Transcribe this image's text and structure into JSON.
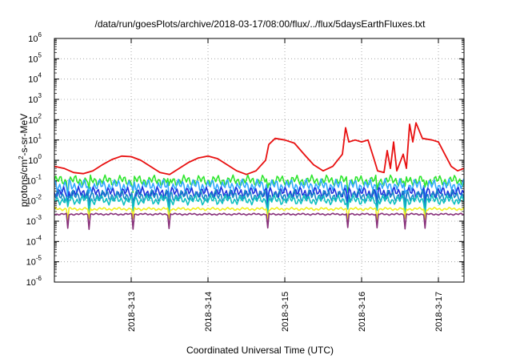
{
  "chart_data": {
    "type": "line",
    "title": "/data/run/goesPlots/archive/2018-03-17/08:00/flux/../flux/5daysEarthFluxes.txt",
    "xlabel": "Coordinated Universal Time (UTC)",
    "ylabel_parts": [
      "protons/cm",
      "2",
      "-s-sr-MeV"
    ],
    "y_scale": "log",
    "ylim": [
      1e-06,
      1000000.0
    ],
    "y_ticks": [
      {
        "base": "10",
        "exp": "-6",
        "value": 1e-06
      },
      {
        "base": "10",
        "exp": "-5",
        "value": 1e-05
      },
      {
        "base": "10",
        "exp": "-4",
        "value": 0.0001
      },
      {
        "base": "10",
        "exp": "-3",
        "value": 0.001
      },
      {
        "base": "10",
        "exp": "-2",
        "value": 0.01
      },
      {
        "base": "10",
        "exp": "-1",
        "value": 0.1
      },
      {
        "base": "10",
        "exp": "0",
        "value": 1
      },
      {
        "base": "10",
        "exp": "1",
        "value": 10
      },
      {
        "base": "10",
        "exp": "2",
        "value": 100
      },
      {
        "base": "10",
        "exp": "3",
        "value": 1000
      },
      {
        "base": "10",
        "exp": "4",
        "value": 10000
      },
      {
        "base": "10",
        "exp": "5",
        "value": 100000
      },
      {
        "base": "10",
        "exp": "6",
        "value": 1000000
      }
    ],
    "xlim": [
      "2018-03-12T00:00",
      "2018-03-17T08:00"
    ],
    "x_ticks": [
      {
        "label": "2018-3-13",
        "value": "2018-03-13T00:00"
      },
      {
        "label": "2018-3-14",
        "value": "2018-03-14T00:00"
      },
      {
        "label": "2018-3-15",
        "value": "2018-03-15T00:00"
      },
      {
        "label": "2018-3-16",
        "value": "2018-03-16T00:00"
      },
      {
        "label": "2018-3-17",
        "value": "2018-03-17T00:00"
      }
    ],
    "grid": true,
    "series": [
      {
        "color": "#e81010",
        "points": [
          [
            "2018-03-12T00:00",
            0.5
          ],
          [
            "2018-03-12T03:00",
            0.4
          ],
          [
            "2018-03-12T06:00",
            0.25
          ],
          [
            "2018-03-12T09:00",
            0.22
          ],
          [
            "2018-03-12T12:00",
            0.3
          ],
          [
            "2018-03-12T15:00",
            0.6
          ],
          [
            "2018-03-12T18:00",
            1.1
          ],
          [
            "2018-03-12T21:00",
            1.6
          ],
          [
            "2018-03-13T00:00",
            1.5
          ],
          [
            "2018-03-13T03:00",
            1.0
          ],
          [
            "2018-03-13T06:00",
            0.5
          ],
          [
            "2018-03-13T09:00",
            0.25
          ],
          [
            "2018-03-13T12:00",
            0.2
          ],
          [
            "2018-03-13T15:00",
            0.4
          ],
          [
            "2018-03-13T18:00",
            0.8
          ],
          [
            "2018-03-13T21:00",
            1.3
          ],
          [
            "2018-03-14T00:00",
            1.6
          ],
          [
            "2018-03-14T03:00",
            1.2
          ],
          [
            "2018-03-14T06:00",
            0.6
          ],
          [
            "2018-03-14T09:00",
            0.3
          ],
          [
            "2018-03-14T12:00",
            0.2
          ],
          [
            "2018-03-14T15:00",
            0.3
          ],
          [
            "2018-03-14T18:00",
            1.0
          ],
          [
            "2018-03-14T19:00",
            6.0
          ],
          [
            "2018-03-14T21:00",
            12.0
          ],
          [
            "2018-03-15T00:00",
            10.0
          ],
          [
            "2018-03-15T03:00",
            7.0
          ],
          [
            "2018-03-15T06:00",
            2.0
          ],
          [
            "2018-03-15T09:00",
            0.6
          ],
          [
            "2018-03-15T12:00",
            0.3
          ],
          [
            "2018-03-15T15:00",
            0.5
          ],
          [
            "2018-03-15T18:00",
            2.0
          ],
          [
            "2018-03-15T19:00",
            40.0
          ],
          [
            "2018-03-15T20:00",
            8.0
          ],
          [
            "2018-03-15T22:00",
            10.0
          ],
          [
            "2018-03-16T00:00",
            8.0
          ],
          [
            "2018-03-16T02:00",
            10.0
          ],
          [
            "2018-03-16T04:00",
            1.0
          ],
          [
            "2018-03-16T05:00",
            0.3
          ],
          [
            "2018-03-16T07:00",
            0.25
          ],
          [
            "2018-03-16T08:00",
            3.0
          ],
          [
            "2018-03-16T09:00",
            0.4
          ],
          [
            "2018-03-16T10:00",
            8.0
          ],
          [
            "2018-03-16T11:00",
            0.3
          ],
          [
            "2018-03-16T13:00",
            2.0
          ],
          [
            "2018-03-16T14:00",
            0.4
          ],
          [
            "2018-03-16T15:00",
            60.0
          ],
          [
            "2018-03-16T16:00",
            8.0
          ],
          [
            "2018-03-16T17:00",
            70.0
          ],
          [
            "2018-03-16T19:00",
            12.0
          ],
          [
            "2018-03-16T22:00",
            10.0
          ],
          [
            "2018-03-17T00:00",
            8.0
          ],
          [
            "2018-03-17T02:00",
            2.0
          ],
          [
            "2018-03-17T04:00",
            0.5
          ],
          [
            "2018-03-17T06:00",
            0.3
          ],
          [
            "2018-03-17T08:00",
            0.4
          ]
        ]
      },
      {
        "color": "#2ee62e",
        "level": 0.1,
        "amplitude": 0.28,
        "phase": 0.0
      },
      {
        "color": "#30a8ff",
        "level": 0.055,
        "amplitude": 0.35,
        "phase": 1.1
      },
      {
        "color": "#1e32dc",
        "level": 0.025,
        "amplitude": 0.3,
        "phase": 2.3
      },
      {
        "color": "#1888c8",
        "level": 0.018,
        "amplitude": 0.3,
        "phase": 3.4
      },
      {
        "color": "#10c0c0",
        "level": 0.011,
        "amplitude": 0.25,
        "phase": 4.2
      },
      {
        "color": "#f0f020",
        "level": 0.004,
        "amplitude": 0.08,
        "phase": 0.7
      },
      {
        "color": "#88307a",
        "level": 0.0022,
        "amplitude": 0.05,
        "phase": 5.0
      }
    ],
    "dips": [
      "2018-03-12T04:00",
      "2018-03-12T11:00",
      "2018-03-13T00:30",
      "2018-03-13T12:00",
      "2018-03-14T18:30",
      "2018-03-15T19:30",
      "2018-03-16T05:00",
      "2018-03-16T13:30",
      "2018-03-16T20:00"
    ]
  }
}
